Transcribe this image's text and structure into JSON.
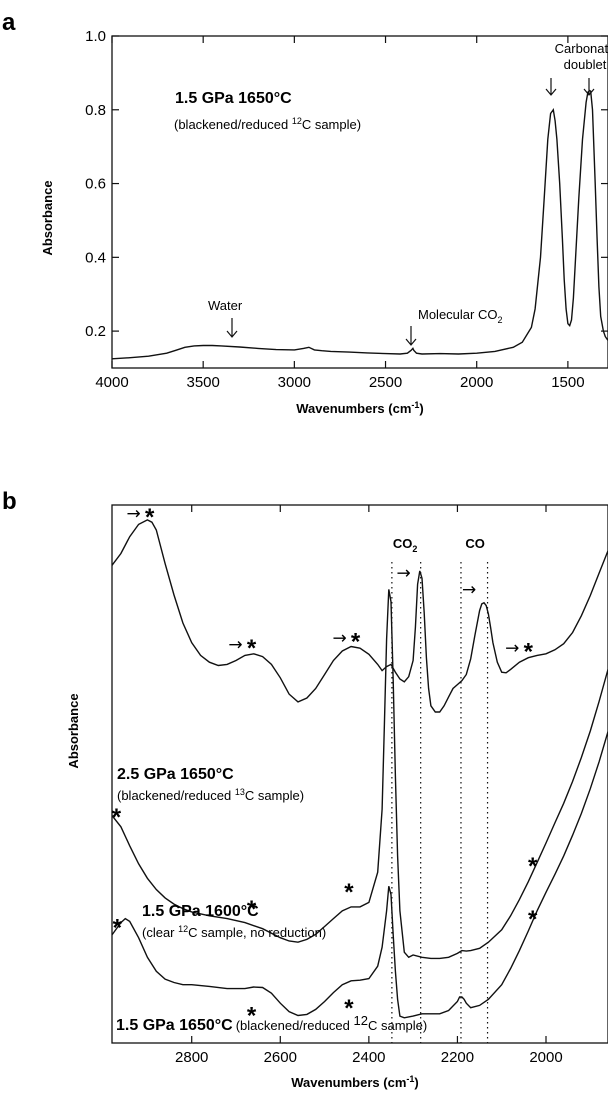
{
  "chart_data": [
    {
      "panel": "a",
      "type": "line",
      "xlabel": "Wavenumbers",
      "xlabel_unit": "(cm-1)",
      "ylabel": "Absorbance",
      "xlim": [
        4000,
        1280
      ],
      "ylim": [
        0.1,
        1.0
      ],
      "x_reversed": true,
      "xticks": [
        "4000",
        "3500",
        "3000",
        "2500",
        "2000",
        "1500"
      ],
      "xtick_values": [
        4000,
        3500,
        3000,
        2500,
        2000,
        1500
      ],
      "yticks": [
        "0.2",
        "0.4",
        "0.6",
        "0.8",
        "1.0"
      ],
      "ytick_values": [
        0.2,
        0.4,
        0.6,
        0.8,
        1.0
      ],
      "condition": "1.5  GPa  1650°C",
      "sample": "(blackened/reduced ",
      "sample_iso": "12",
      "sample_tail": "C sample)",
      "annotations": {
        "carbonate_line1": "Carbonate",
        "carbonate_line2": "doublet",
        "water": "Water",
        "co2_label": "Molecular CO",
        "co2_sub": "2"
      },
      "series": [
        {
          "x": [
            4000,
            3900,
            3800,
            3700,
            3650,
            3600,
            3550,
            3500,
            3450,
            3400,
            3300,
            3200,
            3100,
            3000,
            2950,
            2920,
            2890,
            2850,
            2800,
            2700,
            2600,
            2500,
            2420,
            2380,
            2360,
            2350,
            2345,
            2330,
            2300,
            2200,
            2100,
            2000,
            1900,
            1800,
            1750,
            1700,
            1680,
            1650,
            1630,
            1610,
            1595,
            1580,
            1570,
            1560,
            1545,
            1530,
            1520,
            1510,
            1500,
            1490,
            1480,
            1470,
            1460,
            1440,
            1420,
            1400,
            1390,
            1380,
            1375,
            1365,
            1350,
            1340,
            1330,
            1320,
            1305,
            1295,
            1285,
            1280
          ],
          "values": [
            0.125,
            0.128,
            0.132,
            0.14,
            0.148,
            0.156,
            0.16,
            0.161,
            0.161,
            0.16,
            0.157,
            0.153,
            0.15,
            0.149,
            0.153,
            0.156,
            0.149,
            0.147,
            0.145,
            0.143,
            0.141,
            0.139,
            0.138,
            0.14,
            0.148,
            0.153,
            0.148,
            0.14,
            0.138,
            0.139,
            0.138,
            0.14,
            0.145,
            0.156,
            0.17,
            0.21,
            0.26,
            0.4,
            0.56,
            0.72,
            0.79,
            0.8,
            0.77,
            0.72,
            0.6,
            0.45,
            0.34,
            0.26,
            0.22,
            0.215,
            0.23,
            0.29,
            0.38,
            0.56,
            0.72,
            0.82,
            0.848,
            0.852,
            0.85,
            0.8,
            0.6,
            0.45,
            0.32,
            0.24,
            0.2,
            0.185,
            0.178,
            0.175
          ]
        }
      ]
    },
    {
      "panel": "b",
      "type": "line",
      "xlabel": "Wavenumbers",
      "xlabel_unit": "(cm-1)",
      "ylabel": "Absorbance",
      "xlim": [
        2980,
        1860
      ],
      "ylim": [
        0,
        100
      ],
      "x_reversed": true,
      "xticks": [
        "2800",
        "2600",
        "2400",
        "2200",
        "2000"
      ],
      "xtick_values": [
        2800,
        2600,
        2400,
        2200,
        2000
      ],
      "vlines": [
        2348,
        2283,
        2192,
        2132
      ],
      "vline_labels": [
        {
          "text": "CO",
          "sub": "2",
          "x": 2318
        },
        {
          "text": "CO",
          "sub": "",
          "x": 2160
        }
      ],
      "series": [
        {
          "condition": "2.5  GPa  1650°C",
          "sample": "(blackened/reduced ",
          "sample_iso": "13",
          "sample_tail": "C sample)",
          "x": [
            2980,
            2960,
            2940,
            2920,
            2900,
            2890,
            2880,
            2860,
            2840,
            2820,
            2800,
            2780,
            2760,
            2740,
            2720,
            2700,
            2680,
            2660,
            2640,
            2620,
            2600,
            2580,
            2560,
            2540,
            2520,
            2500,
            2480,
            2460,
            2440,
            2420,
            2400,
            2380,
            2370,
            2360,
            2350,
            2340,
            2330,
            2320,
            2310,
            2300,
            2295,
            2290,
            2285,
            2280,
            2275,
            2270,
            2265,
            2260,
            2250,
            2240,
            2230,
            2220,
            2210,
            2200,
            2190,
            2180,
            2170,
            2160,
            2150,
            2145,
            2140,
            2135,
            2130,
            2125,
            2120,
            2110,
            2100,
            2090,
            2080,
            2060,
            2040,
            2020,
            2000,
            1980,
            1960,
            1940,
            1920,
            1900,
            1880,
            1860
          ],
          "values": [
            81.2,
            83.3,
            86.3,
            88.5,
            89.3,
            88.9,
            87.5,
            81.5,
            75.9,
            70.9,
            67.4,
            65.1,
            63.9,
            63.3,
            63.5,
            64.2,
            65.1,
            65.4,
            64.9,
            63.5,
            61.1,
            58.2,
            56.8,
            57.5,
            59.2,
            61.7,
            64.2,
            65.9,
            66.7,
            66.4,
            65.3,
            63.5,
            62.4,
            63.1,
            63.5,
            62.1,
            60.9,
            60.4,
            61.3,
            64.2,
            70.1,
            77.8,
            80.2,
            78.9,
            72.7,
            64.7,
            59.2,
            56.1,
            55.0,
            55.0,
            56.1,
            57.7,
            59.2,
            59.9,
            60.6,
            61.7,
            64.5,
            68.9,
            73.1,
            74.3,
            74.5,
            74.0,
            72.5,
            70.1,
            67.4,
            63.9,
            62.1,
            62.0,
            62.6,
            63.9,
            64.7,
            65.1,
            65.4,
            66.1,
            67.2,
            69.2,
            72.2,
            75.8,
            79.8,
            83.8
          ]
        },
        {
          "condition": "1.5  GPa  1600°C",
          "sample": "(clear ",
          "sample_iso": "12",
          "sample_tail": "C sample, no reduction)",
          "x": [
            2980,
            2960,
            2940,
            2920,
            2900,
            2880,
            2860,
            2840,
            2820,
            2800,
            2760,
            2720,
            2680,
            2640,
            2600,
            2580,
            2560,
            2540,
            2520,
            2500,
            2480,
            2460,
            2440,
            2420,
            2400,
            2380,
            2370,
            2365,
            2360,
            2355,
            2350,
            2345,
            2340,
            2335,
            2330,
            2320,
            2310,
            2300,
            2280,
            2260,
            2240,
            2220,
            2200,
            2190,
            2180,
            2170,
            2150,
            2130,
            2100,
            2080,
            2060,
            2040,
            2020,
            2000,
            1980,
            1960,
            1940,
            1920,
            1900,
            1880,
            1860
          ],
          "values": [
            36.5,
            34.5,
            31.1,
            27.9,
            25.3,
            23.3,
            21.8,
            20.7,
            19.9,
            19.3,
            18.6,
            18.1,
            17.4,
            16.3,
            14.7,
            14.1,
            13.9,
            14.4,
            15.3,
            16.7,
            18.1,
            19.5,
            20.2,
            20.2,
            21.0,
            26.4,
            37.6,
            52.8,
            68.0,
            76.9,
            74.7,
            60.6,
            43.5,
            29.3,
            19.5,
            12.1,
            11.2,
            11.6,
            11.2,
            11.0,
            11.0,
            11.2,
            11.9,
            12.4,
            12.3,
            12.4,
            12.8,
            13.9,
            16.1,
            18.6,
            21.5,
            24.7,
            28.1,
            31.6,
            35.2,
            38.7,
            42.6,
            46.9,
            51.6,
            56.9,
            62.6
          ]
        },
        {
          "condition": "1.5  GPa  1650°C",
          "sample": "(blackened/reduced ",
          "sample_iso": "12",
          "sample_tail": "C sample)",
          "x": [
            2980,
            2960,
            2950,
            2940,
            2920,
            2900,
            2880,
            2860,
            2840,
            2820,
            2800,
            2760,
            2720,
            2680,
            2660,
            2640,
            2620,
            2600,
            2580,
            2560,
            2540,
            2520,
            2500,
            2480,
            2460,
            2440,
            2420,
            2400,
            2380,
            2370,
            2360,
            2355,
            2350,
            2345,
            2340,
            2335,
            2330,
            2320,
            2300,
            2280,
            2260,
            2240,
            2220,
            2200,
            2195,
            2190,
            2185,
            2180,
            2170,
            2150,
            2130,
            2100,
            2080,
            2060,
            2040,
            2020,
            2000,
            1980,
            1960,
            1940,
            1920,
            1900,
            1880,
            1860
          ],
          "values": [
            15.2,
            17.4,
            18.1,
            17.6,
            14.7,
            11.2,
            8.7,
            7.3,
            6.7,
            6.3,
            6.3,
            6.0,
            5.6,
            5.6,
            5.9,
            5.8,
            4.8,
            3.0,
            1.5,
            0.8,
            1.0,
            1.9,
            3.3,
            4.9,
            6.3,
            7.0,
            7.1,
            7.4,
            9.6,
            13.0,
            19.5,
            23.9,
            22.4,
            15.2,
            8.7,
            3.7,
            0.7,
            0.4,
            0.7,
            1.1,
            1.1,
            1.1,
            1.7,
            3.3,
            4.1,
            4.1,
            3.7,
            3.0,
            2.2,
            2.6,
            3.7,
            6.3,
            9.2,
            12.4,
            15.9,
            19.5,
            22.8,
            26.0,
            29.3,
            33.0,
            36.9,
            41.3,
            46.1,
            51.5
          ]
        }
      ],
      "marker_symbol": "*",
      "arrow_symbol": "→"
    }
  ]
}
